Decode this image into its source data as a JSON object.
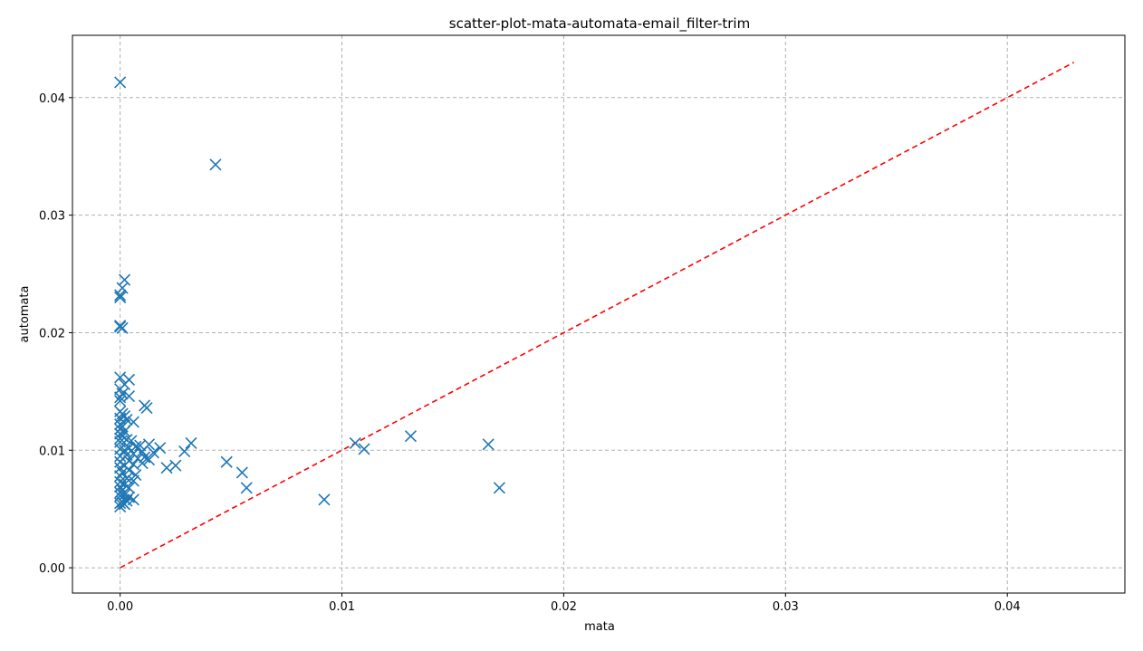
{
  "chart_data": {
    "type": "scatter",
    "title": "scatter-plot-mata-automata-email_filter-trim",
    "xlabel": "mata",
    "ylabel": "automata",
    "xlim": [
      -0.00215,
      0.0453
    ],
    "ylim": [
      -0.00215,
      0.0453
    ],
    "xticks": [
      0.0,
      0.01,
      0.02,
      0.03,
      0.04
    ],
    "yticks": [
      0.0,
      0.01,
      0.02,
      0.03,
      0.04
    ],
    "xtick_labels": [
      "0.00",
      "0.01",
      "0.02",
      "0.03",
      "0.04"
    ],
    "ytick_labels": [
      "0.00",
      "0.01",
      "0.02",
      "0.03",
      "0.04"
    ],
    "grid": true,
    "marker": "x",
    "marker_color": "#1f77b4",
    "reference_line": {
      "style": "dashed",
      "color": "#ff0000",
      "from": [
        0.0,
        0.0
      ],
      "to": [
        0.043,
        0.043
      ]
    },
    "points": [
      [
        0.0,
        0.0413
      ],
      [
        0.0043,
        0.0343
      ],
      [
        0.0002,
        0.0245
      ],
      [
        0.0001,
        0.0238
      ],
      [
        0.0,
        0.0232
      ],
      [
        0.0,
        0.023
      ],
      [
        0.0,
        0.0206
      ],
      [
        0.0001,
        0.0204
      ],
      [
        0.0,
        0.0205
      ],
      [
        0.0,
        0.0162
      ],
      [
        0.0004,
        0.016
      ],
      [
        0.0002,
        0.0156
      ],
      [
        0.0,
        0.0152
      ],
      [
        0.0001,
        0.0148
      ],
      [
        0.0004,
        0.0146
      ],
      [
        0.0,
        0.0145
      ],
      [
        0.0,
        0.0142
      ],
      [
        0.0011,
        0.0138
      ],
      [
        0.0012,
        0.0136
      ],
      [
        0.0,
        0.0133
      ],
      [
        0.0001,
        0.0131
      ],
      [
        0.0002,
        0.0129
      ],
      [
        0.0,
        0.0127
      ],
      [
        0.0003,
        0.0126
      ],
      [
        0.0006,
        0.0124
      ],
      [
        0.0,
        0.0122
      ],
      [
        0.0001,
        0.012
      ],
      [
        0.0,
        0.0118
      ],
      [
        0.0002,
        0.0116
      ],
      [
        0.0,
        0.0114
      ],
      [
        0.0001,
        0.0112
      ],
      [
        0.0,
        0.011
      ],
      [
        0.0003,
        0.0109
      ],
      [
        0.0005,
        0.0108
      ],
      [
        0.0,
        0.0107
      ],
      [
        0.0032,
        0.0106
      ],
      [
        0.0029,
        0.0099
      ],
      [
        0.0018,
        0.0102
      ],
      [
        0.0013,
        0.0105
      ],
      [
        0.0009,
        0.0104
      ],
      [
        0.0007,
        0.0103
      ],
      [
        0.0004,
        0.0102
      ],
      [
        0.0,
        0.0101
      ],
      [
        0.0002,
        0.01
      ],
      [
        0.001,
        0.0099
      ],
      [
        0.0015,
        0.0098
      ],
      [
        0.0006,
        0.0097
      ],
      [
        0.0003,
        0.0096
      ],
      [
        0.0,
        0.0095
      ],
      [
        0.0011,
        0.0094
      ],
      [
        0.0008,
        0.0093
      ],
      [
        0.0013,
        0.0092
      ],
      [
        0.0004,
        0.0091
      ],
      [
        0.0,
        0.009
      ],
      [
        0.001,
        0.0089
      ],
      [
        0.0006,
        0.0088
      ],
      [
        0.0002,
        0.0087
      ],
      [
        0.0025,
        0.0087
      ],
      [
        0.0021,
        0.0085
      ],
      [
        0.0,
        0.0085
      ],
      [
        0.0004,
        0.0083
      ],
      [
        0.0001,
        0.0081
      ],
      [
        0.0007,
        0.0079
      ],
      [
        0.0,
        0.0078
      ],
      [
        0.0003,
        0.0076
      ],
      [
        0.0006,
        0.0074
      ],
      [
        0.0,
        0.0073
      ],
      [
        0.0002,
        0.0071
      ],
      [
        0.0,
        0.0069
      ],
      [
        0.0004,
        0.0068
      ],
      [
        0.0001,
        0.0066
      ],
      [
        0.0,
        0.0064
      ],
      [
        0.0002,
        0.0062
      ],
      [
        0.0,
        0.0061
      ],
      [
        0.0004,
        0.006
      ],
      [
        0.0006,
        0.0058
      ],
      [
        0.0003,
        0.0057
      ],
      [
        0.0001,
        0.0056
      ],
      [
        0.0,
        0.0055
      ],
      [
        0.0002,
        0.0054
      ],
      [
        0.0,
        0.0052
      ],
      [
        0.0048,
        0.009
      ],
      [
        0.0055,
        0.0081
      ],
      [
        0.0057,
        0.0068
      ],
      [
        0.0092,
        0.0058
      ],
      [
        0.0106,
        0.0106
      ],
      [
        0.011,
        0.0101
      ],
      [
        0.0131,
        0.0112
      ],
      [
        0.0166,
        0.0105
      ],
      [
        0.0171,
        0.0068
      ]
    ]
  }
}
